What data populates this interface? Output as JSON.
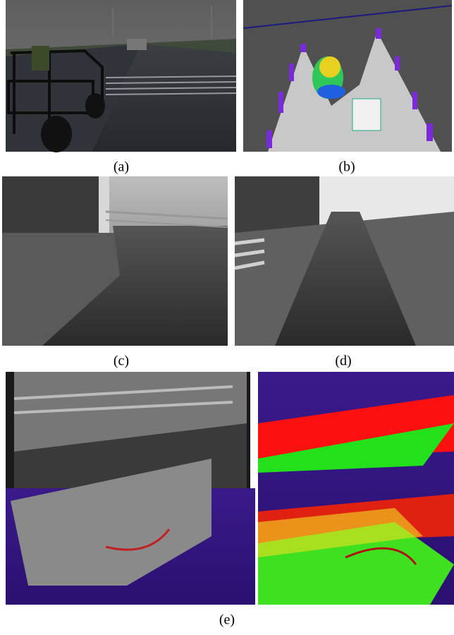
{
  "panels": [
    {
      "caption": "(a)"
    },
    {
      "caption": "(b)"
    },
    {
      "caption": "(c)"
    },
    {
      "caption": "(d)"
    },
    {
      "caption": "(e)"
    }
  ]
}
